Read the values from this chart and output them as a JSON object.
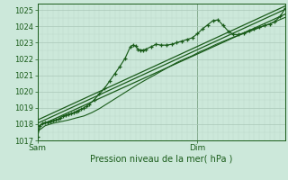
{
  "bg_color": "#cce8da",
  "grid_color_major": "#aac8b8",
  "grid_color_minor": "#bcd8c8",
  "line_color": "#1a5c1a",
  "title": "Pression niveau de la mer( hPa )",
  "xlabel_sam": "Sam",
  "xlabel_dim": "Dim",
  "ylim": [
    1017.0,
    1025.4
  ],
  "xlim": [
    0,
    96
  ],
  "yticks": [
    1017,
    1018,
    1019,
    1020,
    1021,
    1022,
    1023,
    1024,
    1025
  ],
  "sam_x": 0,
  "dim_x": 62,
  "main_line": [
    [
      0,
      1017.2
    ],
    [
      1,
      1017.9
    ],
    [
      2,
      1018.05
    ],
    [
      3,
      1018.1
    ],
    [
      4,
      1018.1
    ],
    [
      5,
      1018.15
    ],
    [
      6,
      1018.2
    ],
    [
      7,
      1018.25
    ],
    [
      8,
      1018.3
    ],
    [
      9,
      1018.4
    ],
    [
      10,
      1018.5
    ],
    [
      11,
      1018.55
    ],
    [
      12,
      1018.6
    ],
    [
      13,
      1018.65
    ],
    [
      14,
      1018.7
    ],
    [
      15,
      1018.78
    ],
    [
      16,
      1018.85
    ],
    [
      17,
      1018.92
    ],
    [
      18,
      1019.0
    ],
    [
      19,
      1019.1
    ],
    [
      20,
      1019.2
    ],
    [
      22,
      1019.5
    ],
    [
      24,
      1019.85
    ],
    [
      26,
      1020.2
    ],
    [
      28,
      1020.65
    ],
    [
      30,
      1021.1
    ],
    [
      32,
      1021.55
    ],
    [
      34,
      1022.05
    ],
    [
      36,
      1022.75
    ],
    [
      37,
      1022.85
    ],
    [
      38,
      1022.8
    ],
    [
      39,
      1022.6
    ],
    [
      40,
      1022.55
    ],
    [
      41,
      1022.55
    ],
    [
      42,
      1022.6
    ],
    [
      44,
      1022.75
    ],
    [
      46,
      1022.9
    ],
    [
      48,
      1022.85
    ],
    [
      50,
      1022.85
    ],
    [
      52,
      1022.9
    ],
    [
      54,
      1023.0
    ],
    [
      56,
      1023.1
    ],
    [
      58,
      1023.2
    ],
    [
      60,
      1023.3
    ],
    [
      62,
      1023.55
    ],
    [
      64,
      1023.85
    ],
    [
      66,
      1024.1
    ],
    [
      68,
      1024.35
    ],
    [
      70,
      1024.4
    ],
    [
      72,
      1024.05
    ],
    [
      74,
      1023.7
    ],
    [
      76,
      1023.5
    ],
    [
      78,
      1023.5
    ],
    [
      80,
      1023.6
    ],
    [
      82,
      1023.75
    ],
    [
      84,
      1023.85
    ],
    [
      86,
      1023.95
    ],
    [
      88,
      1024.05
    ],
    [
      90,
      1024.15
    ],
    [
      92,
      1024.3
    ],
    [
      94,
      1024.6
    ],
    [
      96,
      1025.1
    ]
  ],
  "trend_line1": [
    [
      0,
      1018.05
    ],
    [
      96,
      1025.05
    ]
  ],
  "trend_line2": [
    [
      0,
      1017.85
    ],
    [
      96,
      1024.75
    ]
  ],
  "trend_line3": [
    [
      0,
      1018.25
    ],
    [
      96,
      1025.25
    ]
  ],
  "lower_line": [
    [
      0,
      1017.55
    ],
    [
      3,
      1017.9
    ],
    [
      6,
      1018.05
    ],
    [
      9,
      1018.15
    ],
    [
      12,
      1018.25
    ],
    [
      15,
      1018.38
    ],
    [
      18,
      1018.5
    ],
    [
      21,
      1018.7
    ],
    [
      24,
      1018.95
    ],
    [
      27,
      1019.25
    ],
    [
      30,
      1019.55
    ],
    [
      33,
      1019.85
    ],
    [
      36,
      1020.15
    ],
    [
      39,
      1020.45
    ],
    [
      42,
      1020.72
    ],
    [
      45,
      1020.98
    ],
    [
      48,
      1021.25
    ],
    [
      51,
      1021.52
    ],
    [
      54,
      1021.78
    ],
    [
      57,
      1022.0
    ],
    [
      60,
      1022.2
    ],
    [
      63,
      1022.45
    ],
    [
      66,
      1022.65
    ],
    [
      69,
      1022.88
    ],
    [
      72,
      1023.08
    ],
    [
      75,
      1023.28
    ],
    [
      78,
      1023.45
    ],
    [
      81,
      1023.62
    ],
    [
      84,
      1023.8
    ],
    [
      87,
      1023.98
    ],
    [
      90,
      1024.15
    ],
    [
      93,
      1024.35
    ],
    [
      96,
      1024.55
    ]
  ]
}
